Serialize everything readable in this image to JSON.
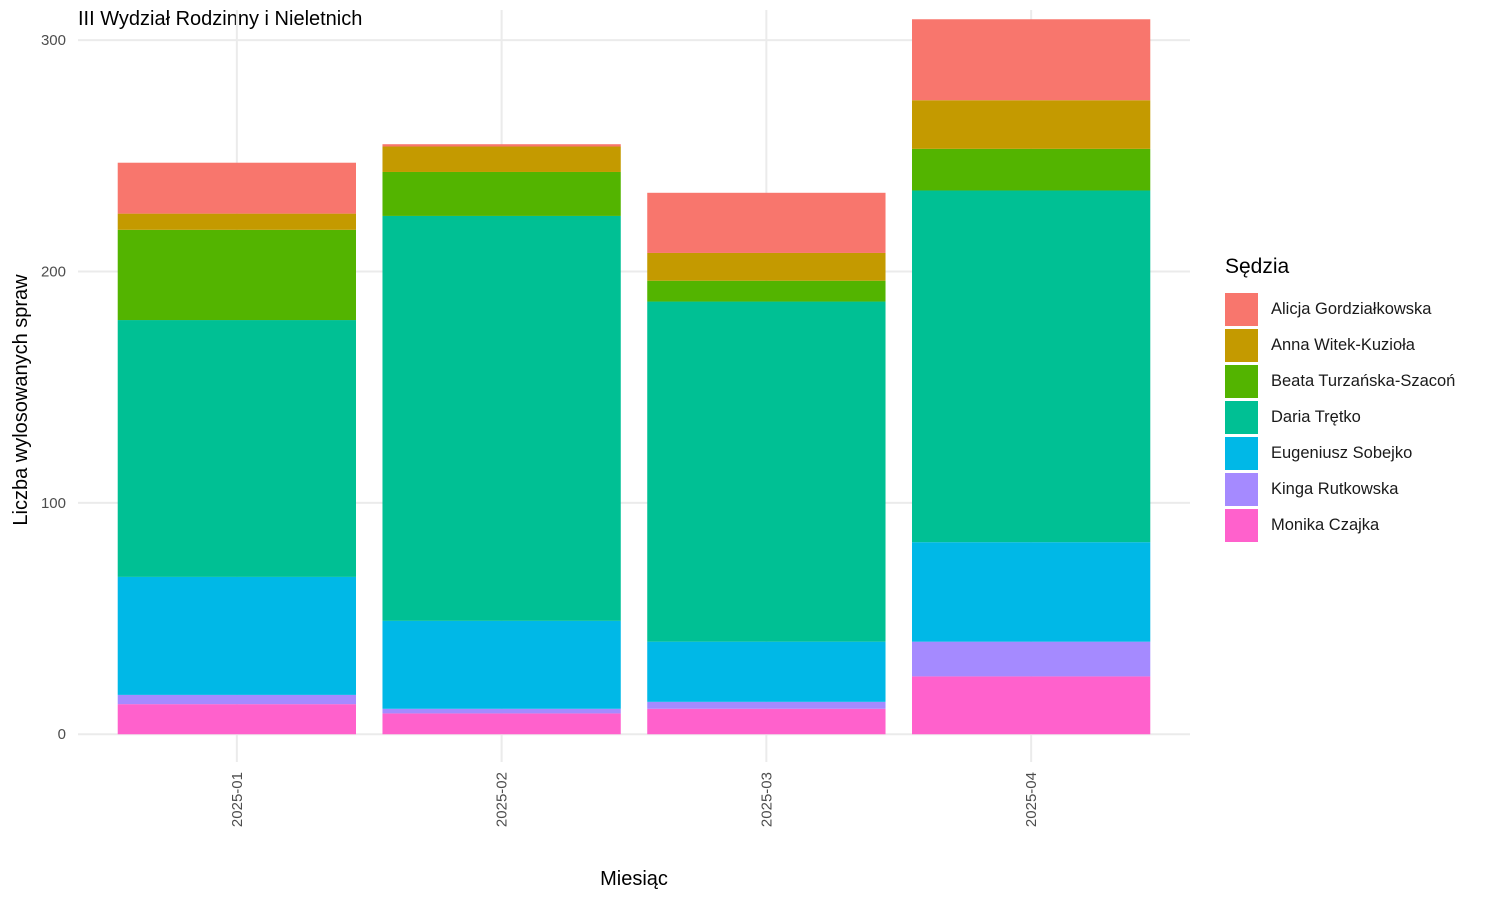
{
  "chart_data": {
    "type": "bar",
    "stacked": true,
    "title": "III Wydział Rodzinny i Nieletnich",
    "xlabel": "Miesiąc",
    "ylabel": "Liczba wylosowanych spraw",
    "ylim": [
      -12,
      313
    ],
    "yticks": [
      0,
      100,
      200,
      300
    ],
    "grid": true,
    "legend_position": "right",
    "legend_title": "Sędzia",
    "categories": [
      "2025-01",
      "2025-02",
      "2025-03",
      "2025-04"
    ],
    "series": [
      {
        "name": "Monika Czajka",
        "color": "#FF61CC",
        "values": [
          13,
          9,
          11,
          25
        ]
      },
      {
        "name": "Kinga Rutkowska",
        "color": "#A58AFF",
        "values": [
          4,
          2,
          3,
          15
        ]
      },
      {
        "name": "Eugeniusz Sobejko",
        "color": "#00B8E7",
        "values": [
          51,
          38,
          26,
          43
        ]
      },
      {
        "name": "Daria Trętko",
        "color": "#00C094",
        "values": [
          111,
          175,
          147,
          152
        ]
      },
      {
        "name": "Beata Turzańska-Szacoń",
        "color": "#53B400",
        "values": [
          39,
          19,
          9,
          18
        ]
      },
      {
        "name": "Anna Witek-Kuzioła",
        "color": "#C49A00",
        "values": [
          7,
          11,
          12,
          21
        ]
      },
      {
        "name": "Alicja Gordziałkowska",
        "color": "#F8766D",
        "values": [
          22,
          1,
          26,
          35
        ]
      }
    ],
    "legend_order": [
      "Alicja Gordziałkowska",
      "Anna Witek-Kuzioła",
      "Beata Turzańska-Szacoń",
      "Daria Trętko",
      "Eugeniusz Sobejko",
      "Kinga Rutkowska",
      "Monika Czajka"
    ]
  }
}
